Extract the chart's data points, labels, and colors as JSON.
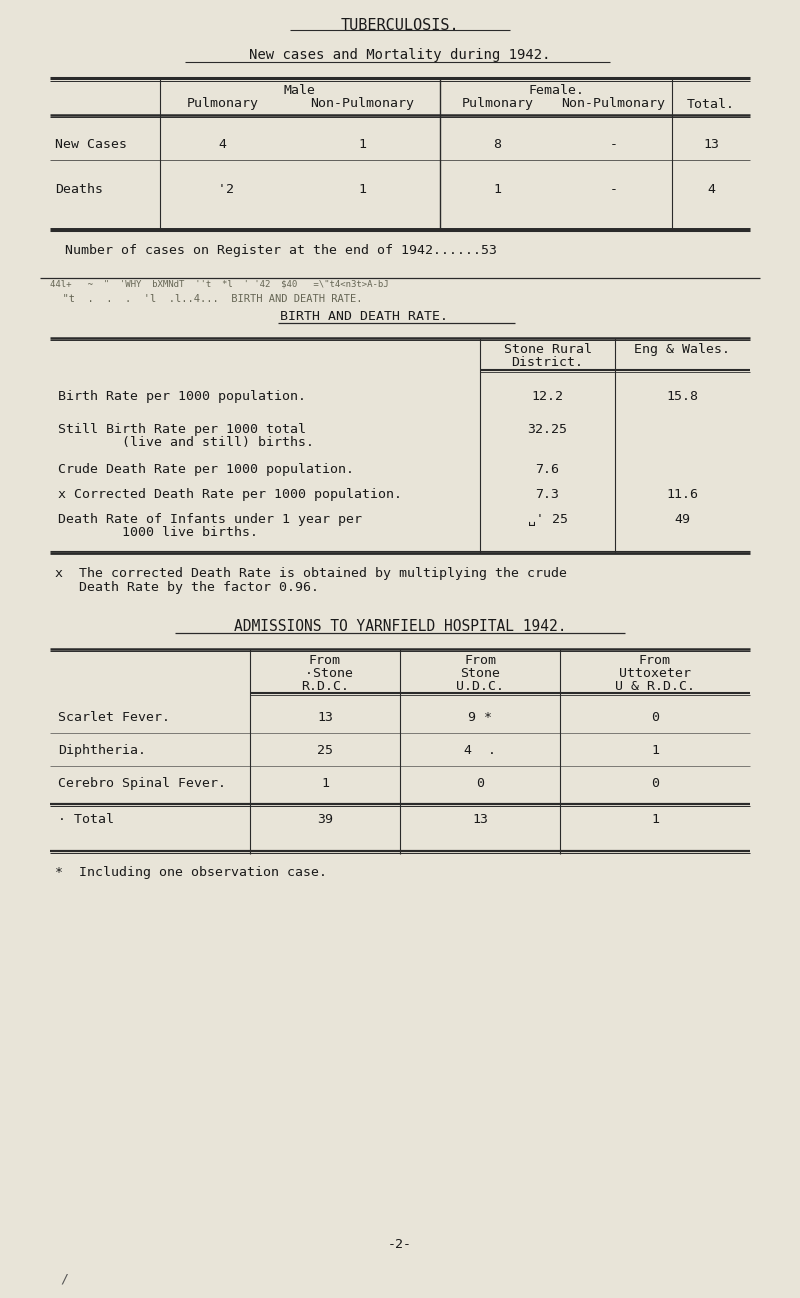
{
  "bg_color": "#e8e4d8",
  "title": "TUBERCULOSIS.",
  "subtitle": "New cases and Mortality during 1942.",
  "register_note": "Number of cases on Register at the end of 1942......53",
  "birth_death_title": "BIRTH AND DEATH RATE.",
  "footnote1": "x  The corrected Death Rate is obtained by multiplying the crude",
  "footnote1b": "   Death Rate by the factor 0.96.",
  "admissions_title": "ADMISSIONS TO YARNFIELD HOSPITAL 1942.",
  "footnote2": "*  Including one observation case.",
  "page_num": "-2-",
  "font_family": "monospace",
  "font_size": 9.5,
  "tb_rows": [
    [
      "New Cases",
      "4",
      "1",
      "8",
      "-",
      "13"
    ],
    [
      "Deaths",
      " '2",
      "1",
      "1",
      "-",
      "4"
    ]
  ],
  "bd_rows": [
    [
      "Birth Rate per 1000 population.",
      "12.2",
      "15.8"
    ],
    [
      "Still Birth Rate per 1000 total",
      "32.25",
      ""
    ],
    [
      "        (live and still) births.",
      "",
      ""
    ],
    [
      "Crude Death Rate per 1000 population.",
      "7.6",
      ""
    ],
    [
      "x Corrected Death Rate per 1000 population.",
      "7.3",
      "11.6"
    ],
    [
      "Death Rate of Infants under 1 year per",
      "␣' 25",
      "49"
    ],
    [
      "        1000 live births.",
      "",
      ""
    ]
  ],
  "adm_rows": [
    [
      "Scarlet Fever.",
      "13",
      "9 *",
      "0"
    ],
    [
      "Diphtheria.",
      "25",
      "4  .",
      "1"
    ],
    [
      "Cerebro Spinal Fever.",
      "1",
      "0",
      "0"
    ],
    [
      "Total",
      "39",
      "13",
      "1"
    ]
  ]
}
